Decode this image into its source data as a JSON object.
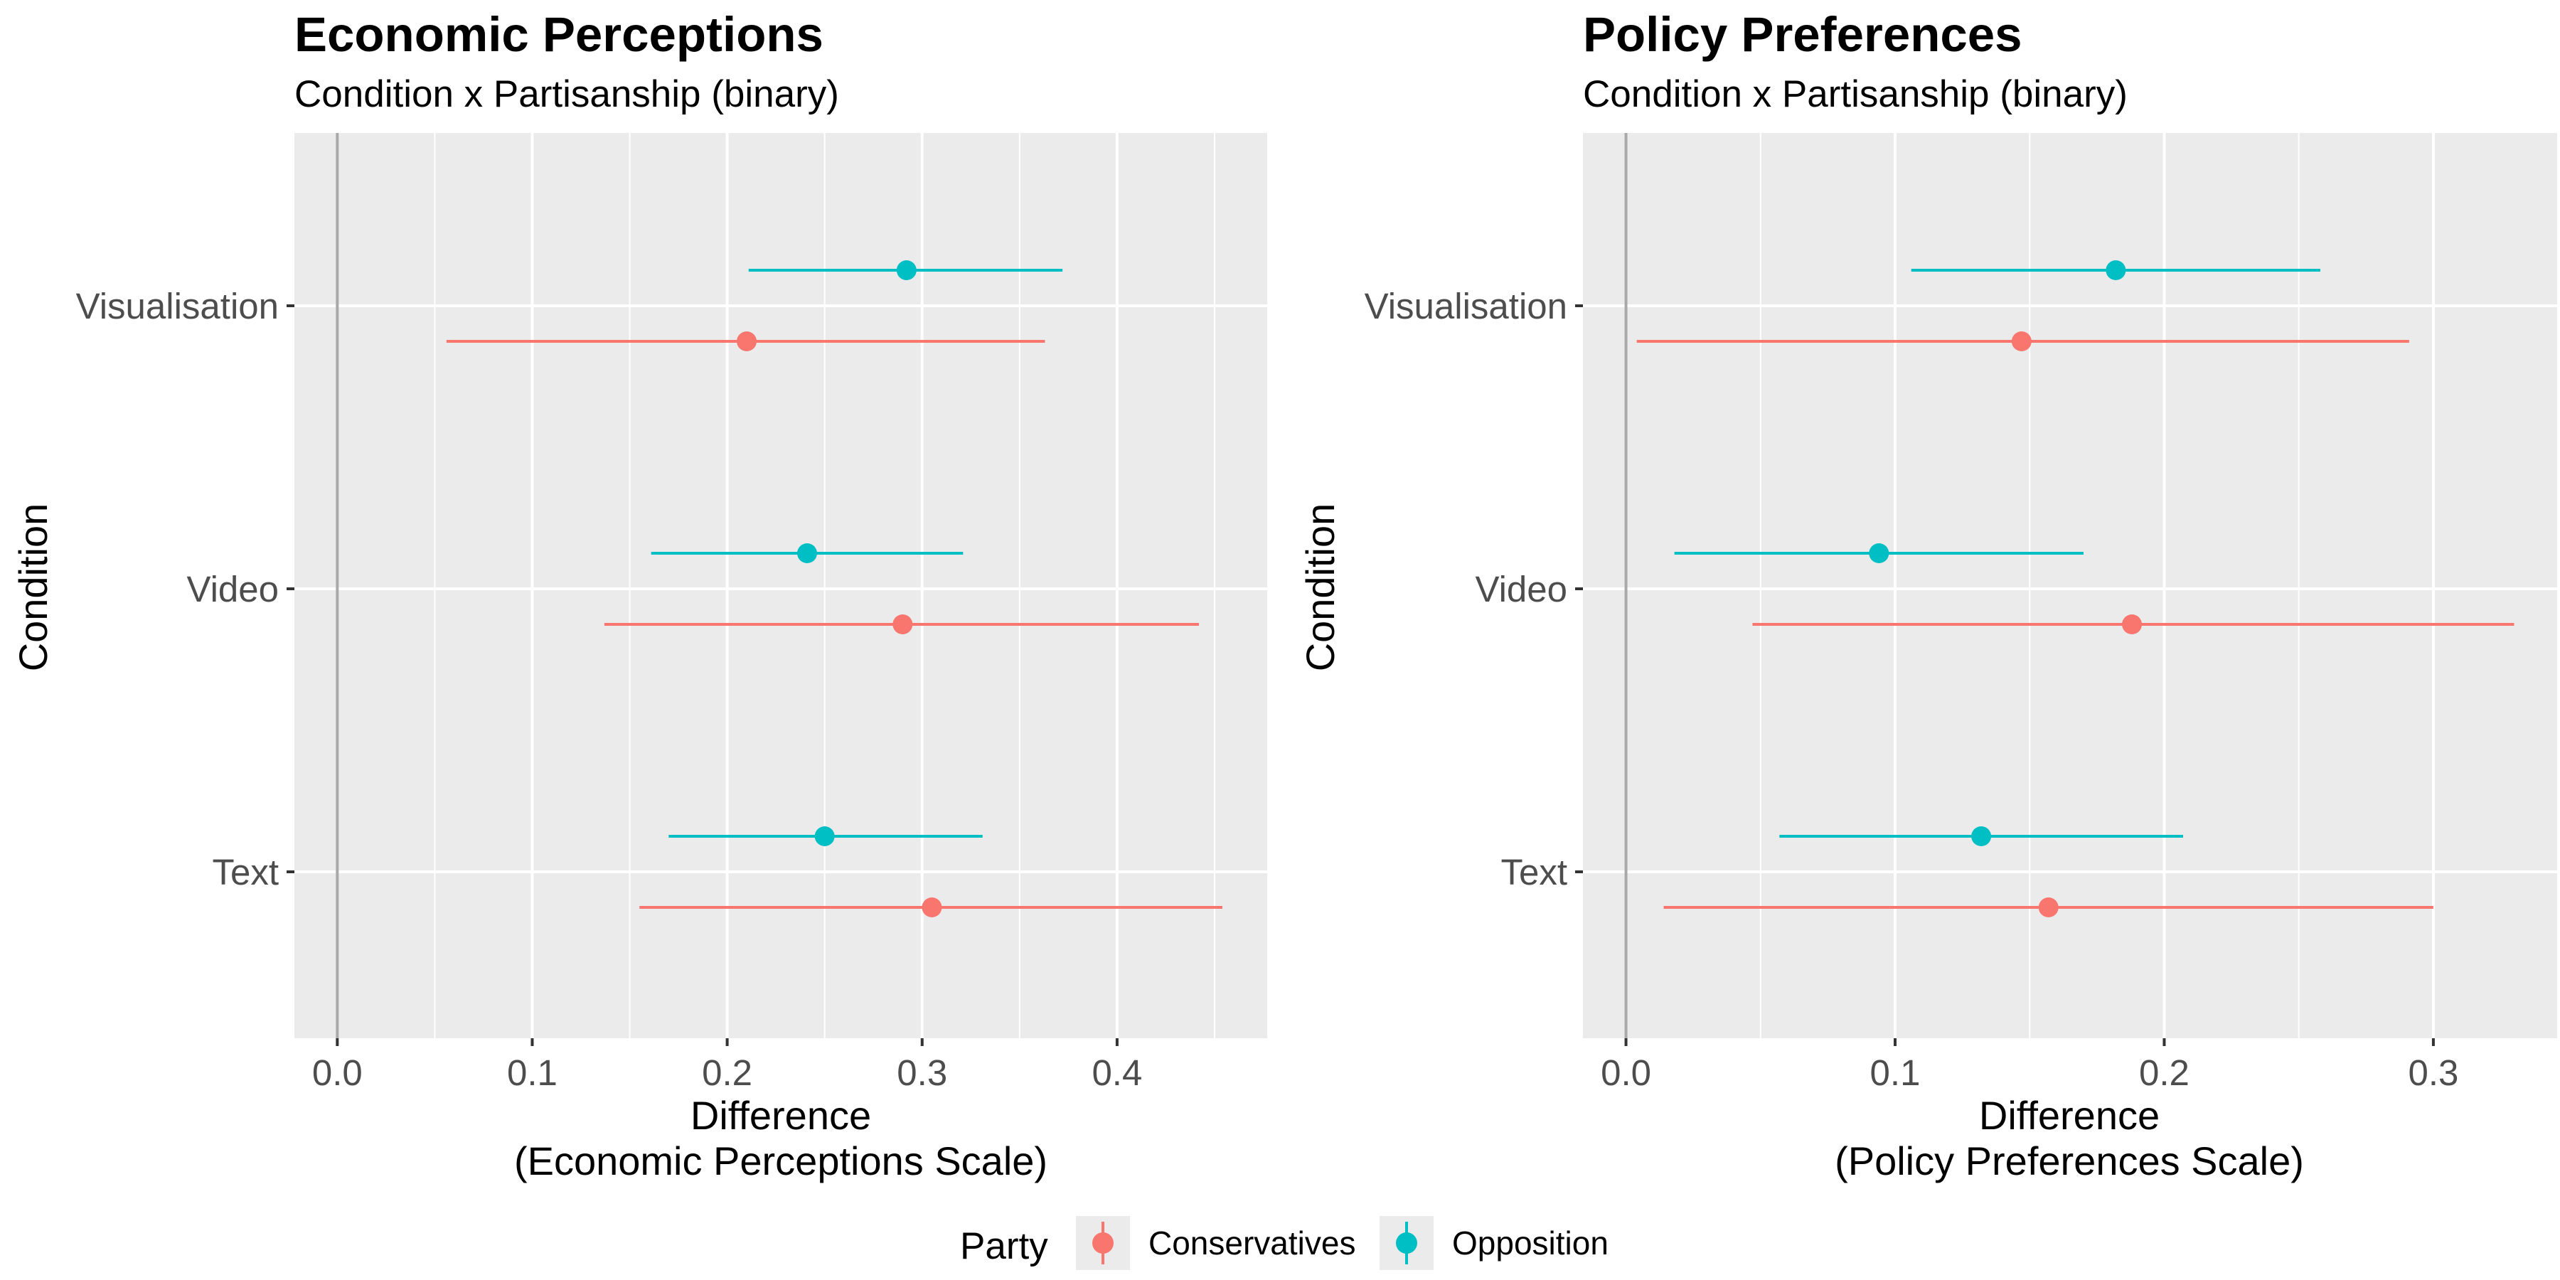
{
  "chart_data": [
    {
      "type": "errorbar",
      "title": "Economic Perceptions",
      "subtitle": "Condition x Partisanship (binary)",
      "xlabel": [
        "Difference",
        "(Economic Perceptions Scale)"
      ],
      "ylabel": "Condition",
      "categories": [
        "Visualisation",
        "Video",
        "Text"
      ],
      "xlim": [
        -0.022,
        0.477
      ],
      "xticks": [
        "0.0",
        "0.1",
        "0.2",
        "0.3",
        "0.4"
      ],
      "xtick_values": [
        0,
        0.1,
        0.2,
        0.3,
        0.4
      ],
      "reference_line": 0,
      "grid": true,
      "series": [
        {
          "name": "Opposition",
          "color": "#00BFC4",
          "estimate": [
            0.292,
            0.241,
            0.25
          ],
          "lower": [
            0.211,
            0.161,
            0.17
          ],
          "upper": [
            0.372,
            0.321,
            0.331
          ]
        },
        {
          "name": "Conservatives",
          "color": "#F8766D",
          "estimate": [
            0.21,
            0.29,
            0.305
          ],
          "lower": [
            0.056,
            0.137,
            0.155
          ],
          "upper": [
            0.363,
            0.442,
            0.454
          ]
        }
      ]
    },
    {
      "type": "errorbar",
      "title": "Policy Preferences",
      "subtitle": "Condition x Partisanship (binary)",
      "xlabel": [
        "Difference",
        "(Policy Preferences Scale)"
      ],
      "ylabel": "Condition",
      "categories": [
        "Visualisation",
        "Video",
        "Text"
      ],
      "xlim": [
        -0.016,
        0.346
      ],
      "xticks": [
        "0.0",
        "0.1",
        "0.2",
        "0.3"
      ],
      "xtick_values": [
        0,
        0.1,
        0.2,
        0.3
      ],
      "reference_line": 0,
      "grid": true,
      "series": [
        {
          "name": "Opposition",
          "color": "#00BFC4",
          "estimate": [
            0.182,
            0.094,
            0.132
          ],
          "lower": [
            0.106,
            0.018,
            0.057
          ],
          "upper": [
            0.258,
            0.17,
            0.207
          ]
        },
        {
          "name": "Conservatives",
          "color": "#F8766D",
          "estimate": [
            0.147,
            0.188,
            0.157
          ],
          "lower": [
            0.004,
            0.047,
            0.014
          ],
          "upper": [
            0.291,
            0.33,
            0.3
          ]
        }
      ]
    }
  ],
  "legend": {
    "title": "Party",
    "position": "bottom",
    "items": [
      {
        "label": "Conservatives",
        "color": "#F8766D"
      },
      {
        "label": "Opposition",
        "color": "#00BFC4"
      }
    ]
  }
}
